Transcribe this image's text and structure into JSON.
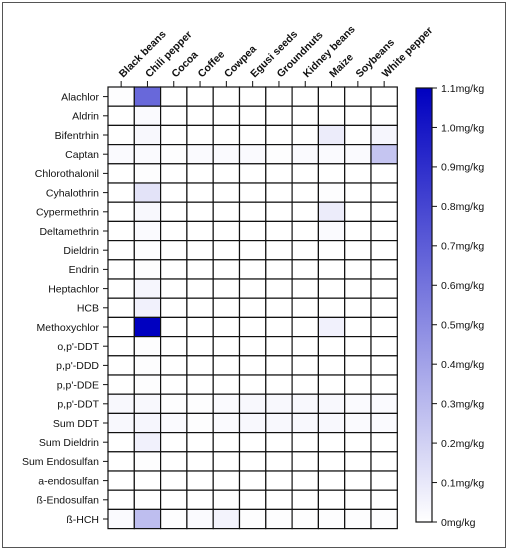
{
  "chart_data": {
    "type": "heatmap",
    "columns": [
      "Black beans",
      "Chili pepper",
      "Cocoa",
      "Coffee",
      "Cowpea",
      "Egusi seeds",
      "Groundnuts",
      "Kidney beans",
      "Maize",
      "Soybeans",
      "White pepper"
    ],
    "rows": [
      "Alachlor",
      "Aldrin",
      "Bifentrhin",
      "Captan",
      "Chlorothalonil",
      "Cyhalothrin",
      "Cypermethrin",
      "Deltamethrin",
      "Dieldrin",
      "Endrin",
      "Heptachlor",
      "HCB",
      "Methoxychlor",
      "o,p'-DDT",
      "p,p'-DDD",
      "p,p'-DDE",
      "p,p'-DDT",
      "Sum DDT",
      "Sum Dieldrin",
      "Sum Endosulfan",
      "a-endosulfan",
      "ß-Endosulfan",
      "ß-HCH"
    ],
    "values": [
      [
        0.01,
        0.65,
        0,
        0,
        0,
        0,
        0,
        0,
        0,
        0,
        0
      ],
      [
        0,
        0.02,
        0,
        0,
        0,
        0,
        0,
        0,
        0,
        0,
        0
      ],
      [
        0,
        0.03,
        0,
        0,
        0,
        0,
        0,
        0,
        0.08,
        0,
        0.04
      ],
      [
        0.02,
        0.02,
        0.01,
        0.02,
        0.02,
        0.02,
        0.01,
        0.02,
        0.02,
        0.02,
        0.25
      ],
      [
        0,
        0.01,
        0,
        0,
        0,
        0,
        0,
        0,
        0,
        0,
        0
      ],
      [
        0,
        0.12,
        0,
        0,
        0,
        0,
        0,
        0,
        0.01,
        0,
        0
      ],
      [
        0,
        0.03,
        0,
        0,
        0,
        0,
        0,
        0,
        0.08,
        0,
        0
      ],
      [
        0,
        0.02,
        0,
        0,
        0,
        0,
        0,
        0,
        0.02,
        0,
        0
      ],
      [
        0,
        0.01,
        0,
        0,
        0,
        0,
        0,
        0,
        0,
        0,
        0
      ],
      [
        0,
        0.01,
        0,
        0,
        0,
        0,
        0,
        0,
        0,
        0,
        0
      ],
      [
        0,
        0.04,
        0,
        0,
        0,
        0,
        0,
        0,
        0,
        0,
        0
      ],
      [
        0,
        0.06,
        0,
        0,
        0,
        0,
        0,
        0,
        0,
        0,
        0
      ],
      [
        0,
        1.1,
        0,
        0,
        0,
        0,
        0,
        0,
        0.06,
        0,
        0
      ],
      [
        0,
        0.01,
        0,
        0,
        0,
        0,
        0,
        0,
        0,
        0,
        0
      ],
      [
        0,
        0.01,
        0,
        0,
        0,
        0,
        0,
        0,
        0,
        0,
        0
      ],
      [
        0,
        0.01,
        0,
        0,
        0,
        0,
        0,
        0,
        0,
        0,
        0
      ],
      [
        0.03,
        0.03,
        0.01,
        0.01,
        0.02,
        0.03,
        0.03,
        0.03,
        0.03,
        0.02,
        0.02
      ],
      [
        0.03,
        0.04,
        0.02,
        0.01,
        0.02,
        0.03,
        0.03,
        0.03,
        0.03,
        0.02,
        0.02
      ],
      [
        0,
        0.06,
        0,
        0,
        0,
        0,
        0,
        0,
        0,
        0,
        0
      ],
      [
        0,
        0.01,
        0,
        0,
        0,
        0,
        0,
        0,
        0,
        0,
        0
      ],
      [
        0,
        0,
        0,
        0,
        0,
        0,
        0,
        0,
        0,
        0,
        0
      ],
      [
        0,
        0,
        0,
        0,
        0,
        0,
        0,
        0,
        0,
        0,
        0
      ],
      [
        0.02,
        0.28,
        0.01,
        0.02,
        0.05,
        0.01,
        0.01,
        0.01,
        0.01,
        0.01,
        0.01
      ]
    ],
    "color_min": "#ffffff",
    "color_max": "#0000c0",
    "scale_range": [
      0,
      1.1
    ],
    "colorbar_ticks": [
      {
        "value": 1.1,
        "label": "1.1mg/kg"
      },
      {
        "value": 1.0,
        "label": "1.0mg/kg"
      },
      {
        "value": 0.9,
        "label": "0.9mg/kg"
      },
      {
        "value": 0.8,
        "label": "0.8mg/kg"
      },
      {
        "value": 0.7,
        "label": "0.7mg/kg"
      },
      {
        "value": 0.6,
        "label": "0.6mg/kg"
      },
      {
        "value": 0.5,
        "label": "0.5mg/kg"
      },
      {
        "value": 0.4,
        "label": "0.4mg/kg"
      },
      {
        "value": 0.3,
        "label": "0.3mg/kg"
      },
      {
        "value": 0.2,
        "label": "0.2mg/kg"
      },
      {
        "value": 0.1,
        "label": "0.1mg/kg"
      },
      {
        "value": 0,
        "label": "0mg/kg"
      }
    ]
  }
}
